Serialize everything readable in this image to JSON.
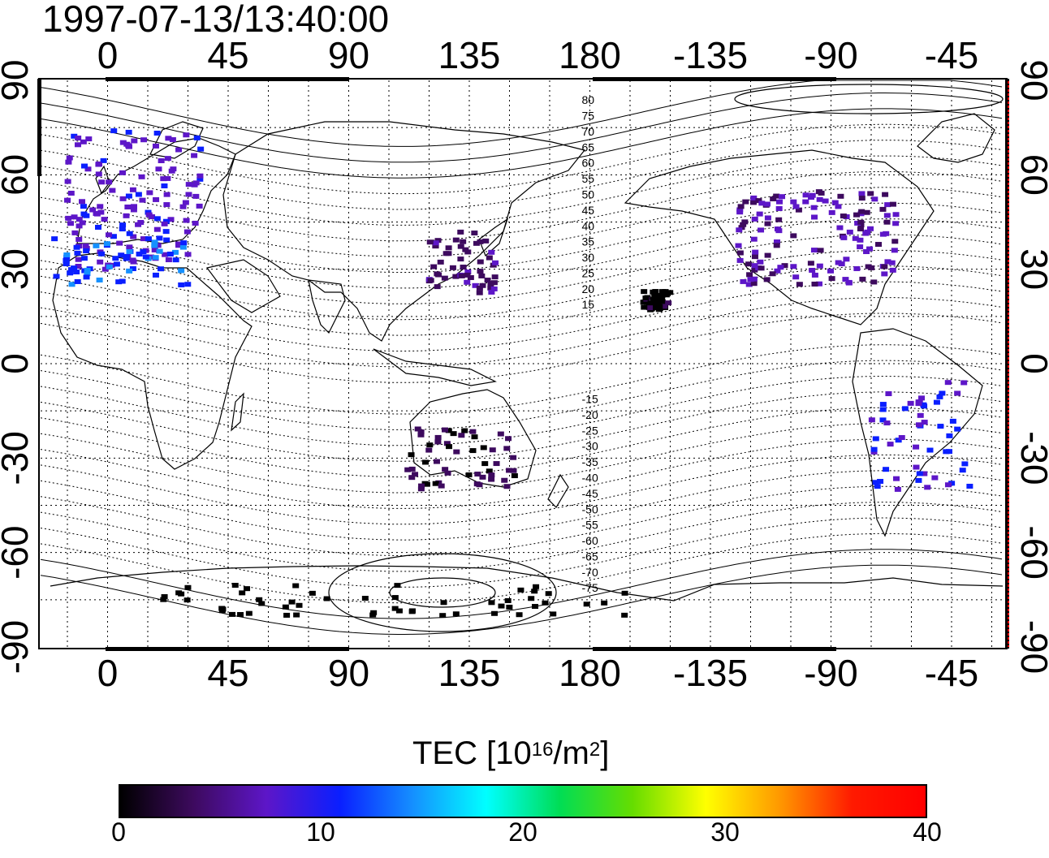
{
  "title": "1997-07-13/13:40:00",
  "map": {
    "lon_tick_labels": [
      "0",
      "45",
      "90",
      "135",
      "180",
      "-135",
      "-90",
      "-45"
    ],
    "lat_tick_labels": [
      "90",
      "60",
      "30",
      "0",
      "-30",
      "-60",
      "-90"
    ],
    "contour_labels_north": [
      "80",
      "75",
      "70",
      "65",
      "60",
      "55",
      "50",
      "45",
      "40",
      "35",
      "30",
      "25",
      "20",
      "15"
    ],
    "contour_labels_south": [
      "-15",
      "-20",
      "-25",
      "-30",
      "-35",
      "-40",
      "-45",
      "-50",
      "-55",
      "-60",
      "-65",
      "-70",
      "-75"
    ],
    "longitude_range": [
      -25,
      335
    ],
    "latitude_range": [
      -90,
      90
    ]
  },
  "colorbar": {
    "title_prefix": "TEC  [10",
    "title_exp": "16",
    "title_mid": "/m",
    "title_exp2": "2",
    "title_suffix": "]",
    "min": 0,
    "max": 40,
    "tick_labels": [
      "0",
      "10",
      "20",
      "30",
      "40"
    ],
    "colors": [
      "#000000",
      "#3d0a5e",
      "#5d16c8",
      "#0a1fff",
      "#1590ff",
      "#00ffff",
      "#00dd55",
      "#66dd00",
      "#ffff00",
      "#ff9900",
      "#ff1a00",
      "#ff0000"
    ]
  },
  "tec_regions": [
    {
      "region": "Europe",
      "tec": 10
    },
    {
      "region": "Mediterranean",
      "tec": 14
    },
    {
      "region": "Japan / East Asia",
      "tec": 6
    },
    {
      "region": "North America",
      "tec": 8
    },
    {
      "region": "Hawaii",
      "tec": 2
    },
    {
      "region": "South America",
      "tec": 11
    },
    {
      "region": "Australia",
      "tec": 4
    },
    {
      "region": "Antarctica",
      "tec": 1
    }
  ]
}
